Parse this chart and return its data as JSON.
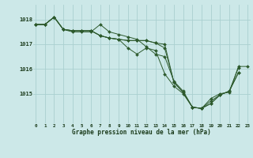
{
  "background_color": "#cce8e8",
  "grid_color": "#aad0d0",
  "line_color": "#2d5a2d",
  "marker_color": "#2d5a2d",
  "title": "Graphe pression niveau de la mer (hPa)",
  "xlabel_hours": [
    0,
    1,
    2,
    3,
    4,
    5,
    6,
    7,
    8,
    9,
    10,
    11,
    12,
    13,
    14,
    15,
    16,
    17,
    18,
    19,
    20,
    21,
    22,
    23
  ],
  "yticks": [
    1015,
    1016,
    1017,
    1018
  ],
  "ylim": [
    1013.8,
    1018.6
  ],
  "xlim": [
    -0.3,
    23.3
  ],
  "series": [
    [
      1017.8,
      1017.8,
      1018.1,
      1017.6,
      1017.5,
      1017.5,
      1017.5,
      1017.8,
      1017.5,
      1017.4,
      1017.3,
      1017.2,
      1016.9,
      1016.6,
      1016.5,
      1015.5,
      1015.1,
      1014.45,
      1014.4,
      1014.8,
      1015.0,
      1015.05,
      1016.1,
      1016.1
    ],
    [
      1017.8,
      1017.8,
      1018.1,
      1017.6,
      1017.55,
      1017.55,
      1017.55,
      1017.35,
      1017.25,
      1017.2,
      1017.15,
      1017.15,
      1017.15,
      1017.05,
      1017.0,
      1015.45,
      1015.05,
      1014.45,
      1014.4,
      1014.7,
      1014.95,
      1015.1,
      1016.05,
      null
    ],
    [
      1017.8,
      1017.8,
      1018.1,
      1017.6,
      1017.55,
      1017.55,
      1017.55,
      1017.35,
      1017.25,
      1017.2,
      1017.15,
      1017.15,
      1017.15,
      1017.05,
      1016.85,
      1015.45,
      1015.05,
      1014.45,
      1014.4,
      1014.6,
      1014.95,
      1015.1,
      1015.85,
      null
    ],
    [
      1017.8,
      1017.8,
      1018.1,
      1017.6,
      1017.55,
      1017.55,
      1017.55,
      1017.35,
      1017.25,
      1017.2,
      1016.85,
      1016.6,
      1016.85,
      1016.75,
      1015.8,
      1015.3,
      1015.0,
      1014.45,
      1014.4,
      1014.6,
      1014.95,
      1015.1,
      1015.85,
      null
    ]
  ]
}
